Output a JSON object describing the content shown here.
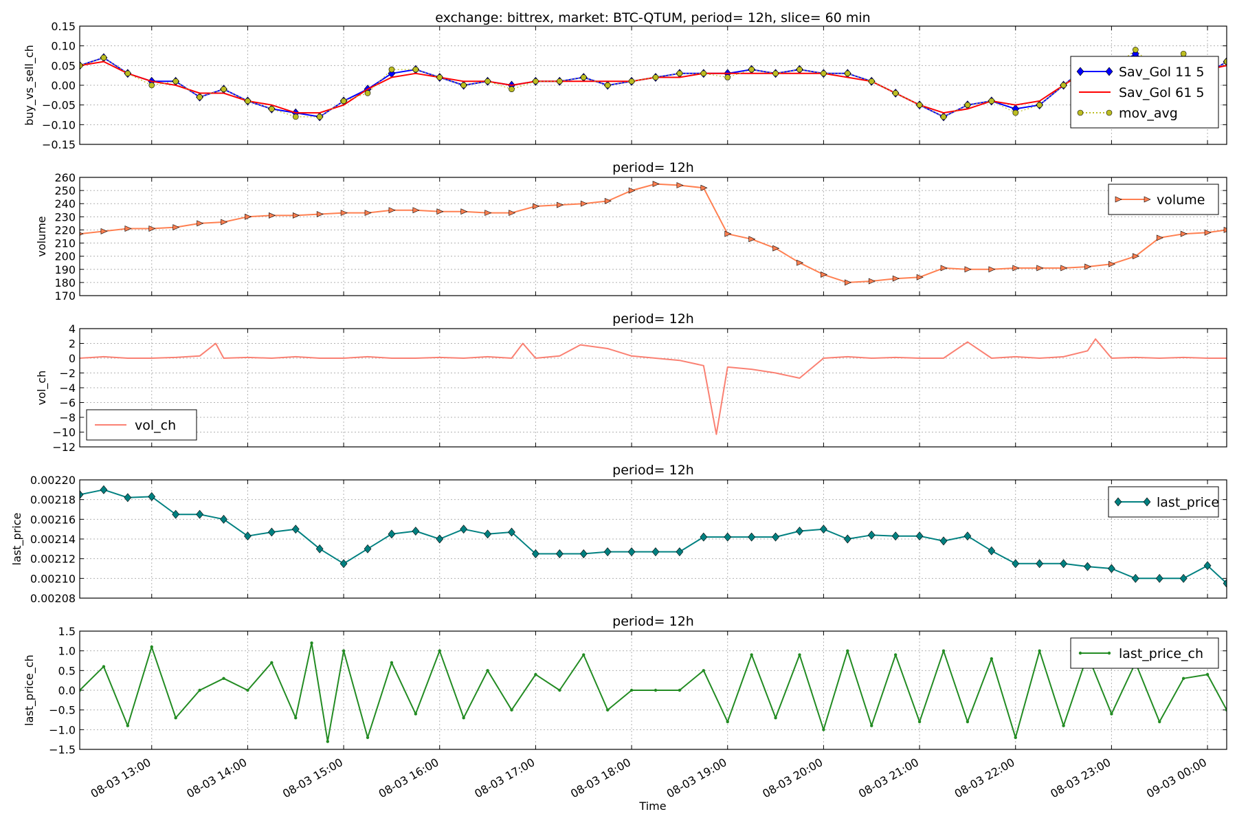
{
  "figure": {
    "suptitle": "exchange: bittrex,   market: BTC-QTUM,    period= 12h,    slice= 60 min",
    "xlabel": "Time",
    "x_ticks": [
      "08-03 13:00",
      "08-03 14:00",
      "08-03 15:00",
      "08-03 16:00",
      "08-03 17:00",
      "08-03 18:00",
      "08-03 19:00",
      "08-03 20:00",
      "08-03 21:00",
      "08-03 22:00",
      "08-03 23:00",
      "09-03 00:00"
    ],
    "x_range": [
      "08-03 12:15",
      "08-03 24:12"
    ],
    "grid": true
  },
  "chart_data": [
    {
      "type": "line",
      "title": "",
      "ylabel": "buy_vs_sell_ch",
      "ylim": [
        -0.15,
        0.15
      ],
      "yticks": [
        "-0.15",
        "-0.10",
        "-0.05",
        "0.00",
        "0.05",
        "0.10",
        "0.15"
      ],
      "legend": "right",
      "x": [
        "12:15",
        "12:30",
        "12:45",
        "13:00",
        "13:15",
        "13:30",
        "13:45",
        "14:00",
        "14:15",
        "14:30",
        "14:45",
        "15:00",
        "15:15",
        "15:30",
        "15:45",
        "16:00",
        "16:15",
        "16:30",
        "16:45",
        "17:00",
        "17:15",
        "17:30",
        "17:45",
        "18:00",
        "18:15",
        "18:30",
        "18:45",
        "19:00",
        "19:15",
        "19:30",
        "19:45",
        "20:00",
        "20:15",
        "20:30",
        "20:45",
        "21:00",
        "21:15",
        "21:30",
        "21:45",
        "22:00",
        "22:15",
        "22:30",
        "22:45",
        "23:00",
        "23:15",
        "23:30",
        "23:45",
        "24:00",
        "24:12"
      ],
      "series": [
        {
          "name": "Sav_Gol 11 5",
          "color": "#0000ff",
          "marker": "diamond",
          "values": [
            0.05,
            0.07,
            0.03,
            0.01,
            0.01,
            -0.03,
            -0.01,
            -0.04,
            -0.06,
            -0.07,
            -0.08,
            -0.04,
            -0.01,
            0.03,
            0.04,
            0.02,
            0.0,
            0.01,
            0.0,
            0.01,
            0.01,
            0.02,
            0.0,
            0.01,
            0.02,
            0.03,
            0.03,
            0.03,
            0.04,
            0.03,
            0.04,
            0.03,
            0.03,
            0.01,
            -0.02,
            -0.05,
            -0.08,
            -0.05,
            -0.04,
            -0.06,
            -0.05,
            0.0,
            0.05,
            0.04,
            0.08,
            0.03,
            0.07,
            0.03,
            0.06
          ]
        },
        {
          "name": "Sav_Gol 61 5",
          "color": "#ff0000",
          "marker": "none",
          "values": [
            0.05,
            0.06,
            0.03,
            0.01,
            0.0,
            -0.02,
            -0.02,
            -0.04,
            -0.05,
            -0.07,
            -0.07,
            -0.05,
            -0.01,
            0.02,
            0.03,
            0.02,
            0.01,
            0.01,
            0.0,
            0.01,
            0.01,
            0.01,
            0.01,
            0.01,
            0.02,
            0.02,
            0.03,
            0.03,
            0.03,
            0.03,
            0.03,
            0.03,
            0.02,
            0.01,
            -0.02,
            -0.05,
            -0.07,
            -0.06,
            -0.04,
            -0.05,
            -0.04,
            0.0,
            0.04,
            0.05,
            0.07,
            0.04,
            0.05,
            0.04,
            0.05
          ]
        },
        {
          "name": "mov_avg",
          "color": "#bcbd22",
          "marker": "circle",
          "style": "dotted",
          "values": [
            0.05,
            0.07,
            0.03,
            0.0,
            0.01,
            -0.03,
            -0.01,
            -0.04,
            -0.06,
            -0.08,
            -0.08,
            -0.04,
            -0.02,
            0.04,
            0.04,
            0.02,
            0.0,
            0.01,
            -0.01,
            0.01,
            0.01,
            0.02,
            0.0,
            0.01,
            0.02,
            0.03,
            0.03,
            0.02,
            0.04,
            0.03,
            0.04,
            0.03,
            0.03,
            0.01,
            -0.02,
            -0.05,
            -0.08,
            -0.05,
            -0.04,
            -0.07,
            -0.05,
            0.0,
            0.05,
            0.04,
            0.09,
            0.03,
            0.08,
            0.03,
            0.06
          ]
        }
      ]
    },
    {
      "type": "line",
      "title": "period= 12h",
      "ylabel": "volume",
      "ylim": [
        170,
        260
      ],
      "yticks": [
        "170",
        "180",
        "190",
        "200",
        "210",
        "220",
        "230",
        "240",
        "250",
        "260"
      ],
      "legend": "top-right",
      "x": [
        "12:15",
        "12:30",
        "12:45",
        "13:00",
        "13:15",
        "13:30",
        "13:45",
        "14:00",
        "14:15",
        "14:30",
        "14:45",
        "15:00",
        "15:15",
        "15:30",
        "15:45",
        "16:00",
        "16:15",
        "16:30",
        "16:45",
        "17:00",
        "17:15",
        "17:30",
        "17:45",
        "18:00",
        "18:15",
        "18:30",
        "18:45",
        "19:00",
        "19:15",
        "19:30",
        "19:45",
        "20:00",
        "20:15",
        "20:30",
        "20:45",
        "21:00",
        "21:15",
        "21:30",
        "21:45",
        "22:00",
        "22:15",
        "22:30",
        "22:45",
        "23:00",
        "23:15",
        "23:30",
        "23:45",
        "24:00",
        "24:12"
      ],
      "series": [
        {
          "name": "volume",
          "color": "#ff7f50",
          "marker": "triangle-right",
          "values": [
            217,
            219,
            221,
            221,
            222,
            225,
            226,
            230,
            231,
            231,
            232,
            233,
            233,
            235,
            235,
            234,
            234,
            233,
            233,
            238,
            239,
            240,
            242,
            250,
            255,
            254,
            252,
            217,
            213,
            206,
            195,
            186,
            180,
            181,
            183,
            184,
            191,
            190,
            190,
            191,
            191,
            191,
            192,
            194,
            200,
            214,
            217,
            218,
            220
          ]
        }
      ]
    },
    {
      "type": "line",
      "title": "period= 12h",
      "ylabel": "vol_ch",
      "ylim": [
        -12,
        4
      ],
      "yticks": [
        "-12",
        "-10",
        "-8",
        "-6",
        "-4",
        "-2",
        "0",
        "2",
        "4"
      ],
      "legend": "bottom-left",
      "x": [
        "12:15",
        "12:30",
        "12:45",
        "13:00",
        "13:15",
        "13:30",
        "13:40",
        "13:45",
        "14:00",
        "14:15",
        "14:30",
        "14:45",
        "15:00",
        "15:15",
        "15:30",
        "15:45",
        "16:00",
        "16:15",
        "16:30",
        "16:45",
        "16:52",
        "17:00",
        "17:15",
        "17:28",
        "17:45",
        "18:00",
        "18:15",
        "18:30",
        "18:45",
        "18:53",
        "19:00",
        "19:15",
        "19:30",
        "19:45",
        "20:00",
        "20:15",
        "20:30",
        "20:45",
        "21:00",
        "21:15",
        "21:30",
        "21:45",
        "22:00",
        "22:15",
        "22:30",
        "22:45",
        "22:50",
        "23:00",
        "23:15",
        "23:30",
        "23:45",
        "24:00",
        "24:12"
      ],
      "series": [
        {
          "name": "vol_ch",
          "color": "#fa8072",
          "marker": "none",
          "values": [
            0.0,
            0.2,
            0.0,
            0.0,
            0.1,
            0.3,
            2.0,
            0.0,
            0.1,
            0.0,
            0.2,
            0.0,
            0.0,
            0.2,
            0.0,
            0.0,
            0.1,
            0.0,
            0.2,
            0.0,
            2.0,
            0.0,
            0.3,
            1.8,
            1.3,
            0.3,
            0.0,
            -0.3,
            -1.0,
            -10.3,
            -1.2,
            -1.5,
            -2.0,
            -2.7,
            0.0,
            0.2,
            0.0,
            0.1,
            0.0,
            0.0,
            2.2,
            0.0,
            0.2,
            0.0,
            0.2,
            1.0,
            2.6,
            0.0,
            0.1,
            0.0,
            0.1,
            0.0,
            0.0
          ]
        }
      ]
    },
    {
      "type": "line",
      "title": "period= 12h",
      "ylabel": "last_price",
      "ylim": [
        0.00208,
        0.0022
      ],
      "yticks": [
        "0.00208",
        "0.00210",
        "0.00212",
        "0.00214",
        "0.00216",
        "0.00218",
        "0.00220"
      ],
      "legend": "top-right",
      "x": [
        "12:15",
        "12:30",
        "12:45",
        "13:00",
        "13:15",
        "13:30",
        "13:45",
        "14:00",
        "14:15",
        "14:30",
        "14:45",
        "15:00",
        "15:15",
        "15:30",
        "15:45",
        "16:00",
        "16:15",
        "16:30",
        "16:45",
        "17:00",
        "17:15",
        "17:30",
        "17:45",
        "18:00",
        "18:15",
        "18:30",
        "18:45",
        "19:00",
        "19:15",
        "19:30",
        "19:45",
        "20:00",
        "20:15",
        "20:30",
        "20:45",
        "21:00",
        "21:15",
        "21:30",
        "21:45",
        "22:00",
        "22:15",
        "22:30",
        "22:45",
        "23:00",
        "23:15",
        "23:30",
        "23:45",
        "24:00",
        "24:12"
      ],
      "series": [
        {
          "name": "last_price",
          "color": "#008080",
          "marker": "diamond",
          "values": [
            0.002185,
            0.00219,
            0.002182,
            0.002183,
            0.002165,
            0.002165,
            0.00216,
            0.002143,
            0.002147,
            0.00215,
            0.00213,
            0.002115,
            0.00213,
            0.002145,
            0.002148,
            0.00214,
            0.00215,
            0.002145,
            0.002147,
            0.002125,
            0.002125,
            0.002125,
            0.002127,
            0.002127,
            0.002127,
            0.002127,
            0.002142,
            0.002142,
            0.002142,
            0.002142,
            0.002148,
            0.00215,
            0.00214,
            0.002144,
            0.002143,
            0.002143,
            0.002138,
            0.002143,
            0.002128,
            0.002115,
            0.002115,
            0.002115,
            0.002112,
            0.00211,
            0.0021,
            0.0021,
            0.0021,
            0.002113,
            0.002095
          ]
        }
      ]
    },
    {
      "type": "line",
      "title": "period= 12h",
      "ylabel": "last_price_ch",
      "ylim": [
        -1.5,
        1.5
      ],
      "yticks": [
        "-1.5",
        "-1.0",
        "-0.5",
        "0.0",
        "0.5",
        "1.0",
        "1.5"
      ],
      "legend": "top-right",
      "x": [
        "12:15",
        "12:30",
        "12:45",
        "13:00",
        "13:15",
        "13:30",
        "13:45",
        "14:00",
        "14:15",
        "14:30",
        "14:40",
        "14:50",
        "15:00",
        "15:15",
        "15:30",
        "15:45",
        "16:00",
        "16:15",
        "16:30",
        "16:45",
        "17:00",
        "17:15",
        "17:30",
        "17:45",
        "18:00",
        "18:15",
        "18:30",
        "18:45",
        "19:00",
        "19:15",
        "19:30",
        "19:45",
        "20:00",
        "20:15",
        "20:30",
        "20:45",
        "21:00",
        "21:15",
        "21:30",
        "21:45",
        "22:00",
        "22:15",
        "22:30",
        "22:45",
        "23:00",
        "23:15",
        "23:30",
        "23:45",
        "24:00",
        "24:12"
      ],
      "series": [
        {
          "name": "last_price_ch",
          "color": "#228b22",
          "marker": "dot",
          "values": [
            0.0,
            0.6,
            -0.9,
            1.1,
            -0.7,
            0.0,
            0.3,
            0.0,
            0.7,
            -0.7,
            1.2,
            -1.3,
            1.0,
            -1.2,
            0.7,
            -0.6,
            1.0,
            -0.7,
            0.5,
            -0.5,
            0.4,
            0.0,
            0.9,
            -0.5,
            0.0,
            0.0,
            0.0,
            0.5,
            -0.8,
            0.9,
            -0.7,
            0.9,
            -1.0,
            1.0,
            -0.9,
            0.9,
            -0.8,
            1.0,
            -0.8,
            0.8,
            -1.2,
            1.0,
            -0.9,
            0.9,
            -0.6,
            0.7,
            -0.8,
            0.3,
            0.4,
            -0.5
          ]
        }
      ]
    }
  ]
}
